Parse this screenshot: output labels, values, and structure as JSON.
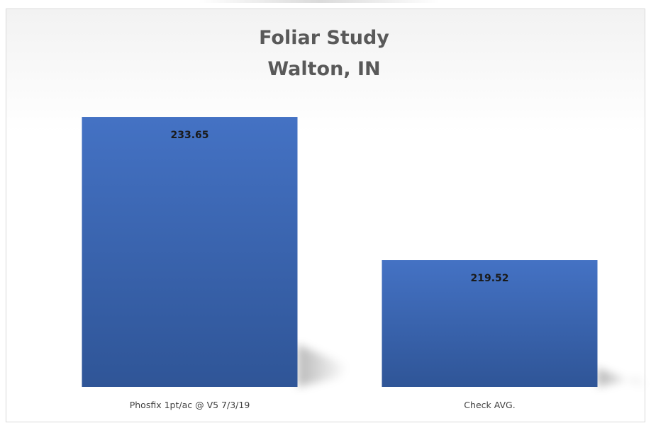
{
  "chart_data": {
    "type": "bar",
    "title": [
      "Foliar Study",
      "Walton, IN"
    ],
    "categories": [
      "Phosfix 1pt/ac @ V5 7/3/19",
      "Check AVG."
    ],
    "values": [
      233.65,
      219.52
    ],
    "data_labels": [
      "233.65",
      "219.52"
    ],
    "xlabel": "",
    "ylabel": "",
    "ylim": [
      207.0,
      236.8
    ],
    "grid": false,
    "legend": "none",
    "colors": {
      "bar_top": "#4472c4",
      "bar_bottom": "#2f5597",
      "title": "#595959",
      "frame_border": "#d9d9d9"
    }
  }
}
